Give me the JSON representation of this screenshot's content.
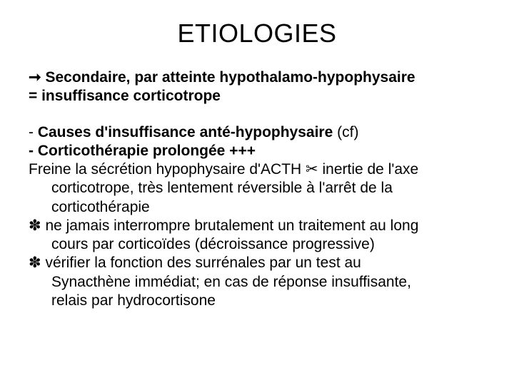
{
  "colors": {
    "background": "#ffffff",
    "text": "#000000"
  },
  "typography": {
    "title_fontsize_pt": 27,
    "body_fontsize_pt": 16,
    "font_family": "Arial"
  },
  "title": "ETIOLOGIES",
  "lead": {
    "bullet_glyph": "➞",
    "line1": "Secondaire, par atteinte hypothalamo-hypophysaire",
    "line2": "= insuffisance corticotrope"
  },
  "paragraphs": {
    "p1_bold": "Causes d'insuffisance anté-hypophysaire ",
    "p1_rest": "(cf)",
    "p2": "Corticothérapie prolongée +++",
    "p3_glyph": "✂",
    "p3_a": "Freine la sécrétion hypophysaire d'ACTH ",
    "p3_b": " inertie de l'axe",
    "p3_c": "corticotrope, très lentement réversible à l'arrêt de la",
    "p3_d": "corticothérapie",
    "p4_glyph": "✽",
    "p4_a": " ne jamais interrompre brutalement un traitement au long",
    "p4_b": "cours par corticoïdes (décroissance progressive)",
    "p5_glyph": "✽",
    "p5_a": " vérifier la fonction des surrénales par un test au",
    "p5_b": "Synacthène immédiat; en cas de réponse insuffisante,",
    "p5_c": "relais par hydrocortisone"
  }
}
